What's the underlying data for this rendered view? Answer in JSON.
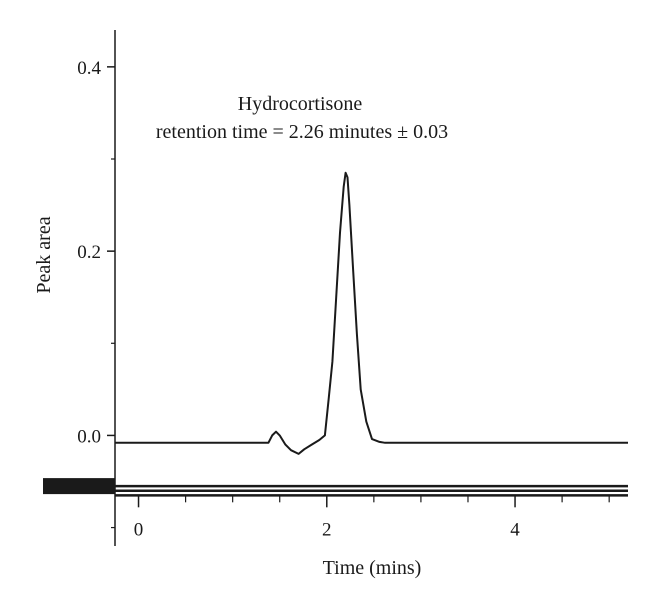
{
  "chart_data": {
    "type": "line",
    "title": "",
    "xlabel": "Time (mins)",
    "ylabel": "Peak area",
    "xlim": [
      -0.25,
      5.2
    ],
    "ylim": [
      -0.12,
      0.44
    ],
    "x_ticks": [
      0,
      2,
      4
    ],
    "x_tick_labels": [
      "0",
      "2",
      "4"
    ],
    "y_ticks": [
      0.0,
      0.2,
      0.4
    ],
    "y_tick_labels": [
      "0.0",
      "0.2",
      "0.4"
    ],
    "grid": false,
    "legend": "none",
    "annotations": [
      "Hydrocortisone",
      "retention time = 2.26 minutes ± 0.03"
    ],
    "series": [
      {
        "color": "#1a1a1a",
        "x": [
          -0.25,
          1.0,
          1.38,
          1.42,
          1.46,
          1.5,
          1.56,
          1.62,
          1.7,
          1.76,
          1.84,
          1.92,
          1.98,
          2.02,
          2.06,
          2.1,
          2.14,
          2.18,
          2.2,
          2.22,
          2.24,
          2.28,
          2.32,
          2.36,
          2.42,
          2.48,
          2.56,
          2.62,
          2.7,
          5.2
        ],
        "y": [
          -0.008,
          -0.008,
          -0.008,
          0.0,
          0.004,
          0.0,
          -0.01,
          -0.016,
          -0.02,
          -0.015,
          -0.01,
          -0.005,
          0.0,
          0.04,
          0.08,
          0.15,
          0.22,
          0.27,
          0.285,
          0.28,
          0.25,
          0.18,
          0.11,
          0.05,
          0.015,
          -0.004,
          -0.007,
          -0.008,
          -0.008,
          -0.008
        ]
      }
    ],
    "baseline_bands": [
      -0.055,
      -0.06,
      -0.065
    ]
  }
}
